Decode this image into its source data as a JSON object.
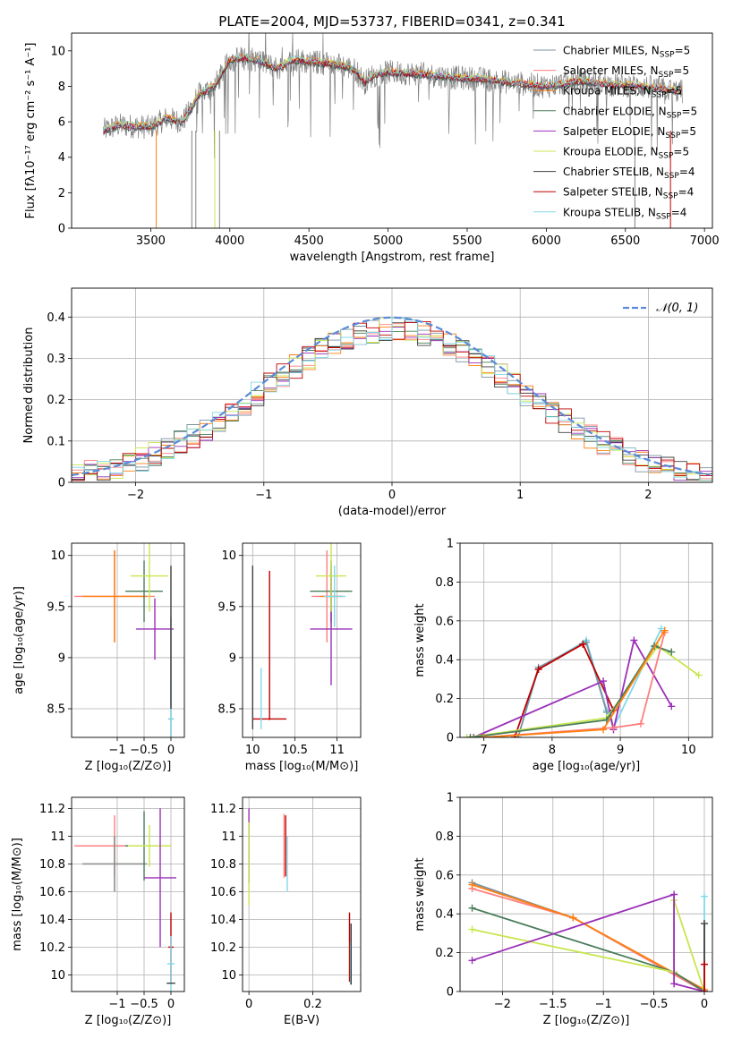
{
  "figure": {
    "title": "PLATE=2004, MJD=53737, FIBERID=0341, z=0.341"
  },
  "legend_entries": [
    {
      "label_pre": "Chabrier MILES, N",
      "label_sub": "SSP",
      "label_post": "=5",
      "color": "#7a93a0"
    },
    {
      "label_pre": "Salpeter MILES, N",
      "label_sub": "SSP",
      "label_post": "=5",
      "color": "#ff7f7f"
    },
    {
      "label_pre": "Kroupa MILES, N",
      "label_sub": "SSP",
      "label_post": "=5",
      "color": "#ff7f0e"
    },
    {
      "label_pre": "Chabrier ELODIE, N",
      "label_sub": "SSP",
      "label_post": "=5",
      "color": "#4a7c59"
    },
    {
      "label_pre": "Salpeter ELODIE, N",
      "label_sub": "SSP",
      "label_post": "=5",
      "color": "#9b30b8"
    },
    {
      "label_pre": "Kroupa ELODIE, N",
      "label_sub": "SSP",
      "label_post": "=5",
      "color": "#c8e650"
    },
    {
      "label_pre": "Chabrier STELIB, N",
      "label_sub": "SSP",
      "label_post": "=4",
      "color": "#404040"
    },
    {
      "label_pre": "Salpeter STELIB, N",
      "label_sub": "SSP",
      "label_post": "=4",
      "color": "#c00000"
    },
    {
      "label_pre": "Kroupa STELIB, N",
      "label_sub": "SSP",
      "label_post": "=4",
      "color": "#80d8e8"
    }
  ],
  "chart_data": [
    {
      "type": "line",
      "xlabel": "wavelength [Angstrom, rest frame]",
      "ylabel_html": "Flux [fλ10⁻¹⁷ erg cm⁻² s⁻¹ A⁻¹]",
      "xlim": [
        3000,
        7050
      ],
      "ylim": [
        0,
        11
      ],
      "xticks": [
        3500,
        4000,
        4500,
        5000,
        5500,
        6000,
        6500,
        7000
      ],
      "yticks": [
        0,
        2,
        4,
        6,
        8,
        10
      ],
      "grid": false,
      "legend_location": "right",
      "spectrum_profile": {
        "x": [
          3200,
          3300,
          3500,
          3600,
          3700,
          3760,
          3800,
          3900,
          3950,
          4000,
          4100,
          4200,
          4300,
          4400,
          4500,
          4600,
          4700,
          4800,
          4850,
          4900,
          5000,
          5200,
          5400,
          5600,
          5800,
          6000,
          6200,
          6400,
          6600,
          6860
        ],
        "y": [
          5.5,
          5.8,
          5.7,
          6.2,
          6.0,
          6.8,
          7.5,
          8.0,
          8.7,
          9.5,
          9.6,
          9.4,
          9.0,
          9.5,
          9.4,
          9.3,
          9.2,
          8.9,
          8.2,
          8.6,
          8.8,
          8.7,
          8.5,
          8.4,
          8.2,
          8.0,
          8.3,
          8.1,
          8.0,
          7.7
        ]
      }
    },
    {
      "type": "step",
      "xlabel": "(data-model)/error",
      "ylabel": "Normed distribution",
      "xlim": [
        -2.5,
        2.5
      ],
      "ylim": [
        0,
        0.47
      ],
      "xticks": [
        -2,
        -1,
        0,
        1,
        2
      ],
      "yticks": [
        0.0,
        0.1,
        0.2,
        0.3,
        0.4
      ],
      "grid": true,
      "legend": "𝒩(0, 1)",
      "legend_location": "top-right",
      "gaussian": {
        "mu": 0,
        "sigma": 1,
        "color": "#5b8bd9"
      },
      "bin_width": 0.1
    },
    {
      "type": "errorbar",
      "xlabel": "Z [log₁₀(Z/Z⊙)]",
      "ylabel": "age  [log₁₀(age/yr)]",
      "xlim": [
        -1.85,
        0.25
      ],
      "ylim": [
        8.22,
        10.12
      ],
      "xticks": [
        -1,
        -0.5,
        0
      ],
      "ytick_values": [
        8.5,
        9.0,
        9.5,
        10.0
      ],
      "grid": true,
      "points": [
        {
          "x": -1.05,
          "y": 9.6,
          "xerr": 0.75,
          "yerr": 0.45,
          "color": "#ff7f7f"
        },
        {
          "x": -1.05,
          "y": 9.6,
          "xerr": 0.6,
          "yerr": 0.45,
          "color": "#ff7f0e"
        },
        {
          "x": -0.5,
          "y": 9.65,
          "xerr": 0.35,
          "yerr": 0.3,
          "color": "#4a7c59"
        },
        {
          "x": -0.3,
          "y": 9.28,
          "xerr": 0.35,
          "yerr": 0.3,
          "color": "#9b30b8"
        },
        {
          "x": -0.4,
          "y": 9.8,
          "xerr": 0.35,
          "yerr": 0.35,
          "color": "#c8e650"
        },
        {
          "x": 0.0,
          "y": 8.4,
          "xerr": 0.05,
          "yerr": 1.0,
          "color": "#7a93a0"
        },
        {
          "x": 0.0,
          "y": 8.4,
          "xerr": 0.05,
          "yerr": 0.4,
          "color": "#80d8e8"
        },
        {
          "x": 0.0,
          "y": 9.2,
          "xerr": 0.0,
          "yerr": 0.7,
          "color": "#404040"
        }
      ]
    },
    {
      "type": "errorbar",
      "xlabel": "mass [log₁₀(M/M⊙)]",
      "xlim": [
        9.88,
        11.28
      ],
      "ylim": [
        8.22,
        10.12
      ],
      "xticks": [
        10.0,
        10.5,
        11.0
      ],
      "ytick_values": [
        8.5,
        9.0,
        9.5,
        10.0
      ],
      "grid": true,
      "points": [
        {
          "x": 10.2,
          "y": 8.4,
          "xerr": 0.2,
          "yerr": 0.0,
          "color": "#c00000"
        },
        {
          "x": 10.2,
          "y": 9.12,
          "xerr": 0.0,
          "yerr": 0.73,
          "color": "#c00000"
        },
        {
          "x": 10.0,
          "y": 9.1,
          "xerr": 0.0,
          "yerr": 0.8,
          "color": "#404040"
        },
        {
          "x": 10.1,
          "y": 8.6,
          "xerr": 0.0,
          "yerr": 0.3,
          "color": "#80d8e8"
        },
        {
          "x": 10.88,
          "y": 9.6,
          "xerr": 0.18,
          "yerr": 0.45,
          "color": "#ff7f7f"
        },
        {
          "x": 10.93,
          "y": 9.6,
          "xerr": 0.13,
          "yerr": 0.3,
          "color": "#ff7f0e"
        },
        {
          "x": 10.93,
          "y": 9.65,
          "xerr": 0.25,
          "yerr": 0.3,
          "color": "#4a7c59"
        },
        {
          "x": 10.93,
          "y": 9.28,
          "xerr": 0.25,
          "yerr": 0.55,
          "color": "#9b30b8"
        },
        {
          "x": 10.93,
          "y": 9.8,
          "xerr": 0.18,
          "yerr": 0.35,
          "color": "#c8e650"
        },
        {
          "x": 10.97,
          "y": 9.6,
          "xerr": 0.13,
          "yerr": 0.3,
          "color": "#80d8e8"
        }
      ]
    },
    {
      "type": "line",
      "xlabel": "age  [log₁₀(age/yr)]",
      "ylabel": "mass weight",
      "xlim": [
        6.65,
        10.35
      ],
      "ylim": [
        0,
        1.0
      ],
      "xticks": [
        7,
        8,
        9,
        10
      ],
      "yticks": [
        0.0,
        0.2,
        0.4,
        0.6,
        0.8,
        1.0
      ],
      "grid": true,
      "series": [
        {
          "color": "#80d8e8",
          "x": [
            7.5,
            7.8,
            8.5,
            8.8,
            8.9,
            9.6
          ],
          "y": [
            0.0,
            0.35,
            0.5,
            0.14,
            0.05,
            0.56
          ]
        },
        {
          "color": "#7a93a0",
          "x": [
            7.5,
            7.8,
            8.5,
            8.8
          ],
          "y": [
            0.0,
            0.36,
            0.49,
            0.13
          ]
        },
        {
          "color": "#c00000",
          "x": [
            7.45,
            7.8,
            8.45,
            8.9
          ],
          "y": [
            0.0,
            0.35,
            0.48,
            0.14
          ]
        },
        {
          "color": "#9b30b8",
          "x": [
            6.85,
            8.75,
            8.9,
            9.2,
            9.75
          ],
          "y": [
            0.0,
            0.29,
            0.04,
            0.5,
            0.16
          ]
        },
        {
          "color": "#c8e650",
          "x": [
            6.75,
            8.8,
            9.55,
            10.15
          ],
          "y": [
            0.0,
            0.1,
            0.47,
            0.32
          ]
        },
        {
          "color": "#4a7c59",
          "x": [
            6.8,
            8.8,
            9.5,
            9.75
          ],
          "y": [
            0.0,
            0.09,
            0.47,
            0.44
          ]
        },
        {
          "color": "#ff7f7f",
          "x": [
            7.0,
            8.9,
            9.3,
            9.65
          ],
          "y": [
            0.0,
            0.05,
            0.07,
            0.54
          ]
        },
        {
          "color": "#ff7f0e",
          "x": [
            7.0,
            8.75,
            9.65
          ],
          "y": [
            0.0,
            0.04,
            0.55
          ]
        }
      ]
    },
    {
      "type": "errorbar",
      "xlabel": "Z [log₁₀(Z/Z⊙)]",
      "ylabel": "mass [log₁₀(M/M⊙)]",
      "xlim": [
        -1.85,
        0.25
      ],
      "ylim": [
        9.88,
        11.28
      ],
      "xticks": [
        -1,
        -0.5,
        0
      ],
      "ytick_values": [
        10.0,
        10.2,
        10.4,
        10.6,
        10.8,
        11.0,
        11.2
      ],
      "grid": true,
      "points": [
        {
          "x": -1.05,
          "y": 10.93,
          "xerr": 0.75,
          "yerr": 0.22,
          "color": "#ff7f7f"
        },
        {
          "x": -1.05,
          "y": 10.8,
          "xerr": 0.6,
          "yerr": 0.2,
          "color": "#ff7f0e"
        },
        {
          "x": -1.05,
          "y": 10.8,
          "xerr": 0.6,
          "yerr": 0.2,
          "color": "#7a93a0"
        },
        {
          "x": -0.5,
          "y": 10.93,
          "xerr": 0.35,
          "yerr": 0.25,
          "color": "#4a7c59"
        },
        {
          "x": -0.4,
          "y": 10.93,
          "xerr": 0.4,
          "yerr": 0.15,
          "color": "#c8e650"
        },
        {
          "x": -0.2,
          "y": 10.7,
          "xerr": 0.3,
          "yerr": 0.5,
          "color": "#9b30b8"
        },
        {
          "x": 0.0,
          "y": 10.2,
          "xerr": 0.05,
          "yerr": 0.25,
          "color": "#c00000"
        },
        {
          "x": 0.0,
          "y": 10.08,
          "xerr": 0.07,
          "yerr": 0.2,
          "color": "#80d8e8"
        },
        {
          "x": 0.0,
          "y": 9.94,
          "xerr": 0.08,
          "yerr": 0.0,
          "color": "#404040"
        }
      ]
    },
    {
      "type": "errorbar",
      "xlabel": "E(B-V)",
      "xlim": [
        -0.02,
        0.35
      ],
      "ylim": [
        9.88,
        11.28
      ],
      "xticks": [
        0.0,
        0.2
      ],
      "ytick_values": [
        10.0,
        10.2,
        10.4,
        10.6,
        10.8,
        11.0,
        11.2
      ],
      "grid": true,
      "points": [
        {
          "x": 0.0,
          "y": 10.93,
          "xerr": 0.0,
          "yerr": 0.27,
          "color": "#9b30b8"
        },
        {
          "x": 0.0,
          "y": 10.8,
          "xerr": 0.0,
          "yerr": 0.3,
          "color": "#c8e650"
        },
        {
          "x": 0.11,
          "y": 10.93,
          "xerr": 0.0,
          "yerr": 0.23,
          "color": "#ff7f7f"
        },
        {
          "x": 0.115,
          "y": 10.93,
          "xerr": 0.0,
          "yerr": 0.22,
          "color": "#c00000"
        },
        {
          "x": 0.12,
          "y": 10.8,
          "xerr": 0.0,
          "yerr": 0.2,
          "color": "#80d8e8"
        },
        {
          "x": 0.315,
          "y": 10.2,
          "xerr": 0.0,
          "yerr": 0.25,
          "color": "#c00000"
        },
        {
          "x": 0.318,
          "y": 10.08,
          "xerr": 0.0,
          "yerr": 0.15,
          "color": "#80d8e8"
        },
        {
          "x": 0.32,
          "y": 10.15,
          "xerr": 0.0,
          "yerr": 0.22,
          "color": "#404040"
        }
      ]
    },
    {
      "type": "line",
      "xlabel": "Z [log₁₀(Z/Z⊙)]",
      "ylabel": "mass weight",
      "xlim": [
        -2.42,
        0.08
      ],
      "ylim": [
        0,
        1.0
      ],
      "xticks": [
        -2.0,
        -1.5,
        -1.0,
        -0.5,
        0.0
      ],
      "yticks": [
        0.0,
        0.2,
        0.4,
        0.6,
        0.8,
        1.0
      ],
      "grid": true,
      "series": [
        {
          "color": "#7a93a0",
          "x": [
            -2.3,
            -1.3,
            0.0
          ],
          "y": [
            0.56,
            0.38,
            0.0
          ]
        },
        {
          "color": "#ff7f7f",
          "x": [
            -2.3,
            -1.3,
            0.0
          ],
          "y": [
            0.53,
            0.38,
            0.0
          ]
        },
        {
          "color": "#ff7f0e",
          "x": [
            -2.3,
            -1.3,
            0.0
          ],
          "y": [
            0.55,
            0.38,
            0.01
          ]
        },
        {
          "color": "#4a7c59",
          "x": [
            -2.3,
            -0.3,
            0.0
          ],
          "y": [
            0.43,
            0.1,
            0.0
          ]
        },
        {
          "color": "#c8e650",
          "x": [
            -2.3,
            -0.3,
            -0.3,
            0.0
          ],
          "y": [
            0.32,
            0.1,
            0.47,
            0.0
          ]
        },
        {
          "color": "#9b30b8",
          "x": [
            -2.3,
            -0.3,
            -0.3,
            0.0
          ],
          "y": [
            0.16,
            0.5,
            0.04,
            0.0
          ]
        },
        {
          "color": "#80d8e8",
          "x": [
            0.0,
            0.0
          ],
          "y": [
            0.0,
            0.49
          ]
        },
        {
          "color": "#404040",
          "x": [
            0.0,
            0.0
          ],
          "y": [
            0.0,
            0.35
          ]
        },
        {
          "color": "#c00000",
          "x": [
            0.0,
            0.0
          ],
          "y": [
            0.0,
            0.14
          ]
        }
      ]
    }
  ]
}
